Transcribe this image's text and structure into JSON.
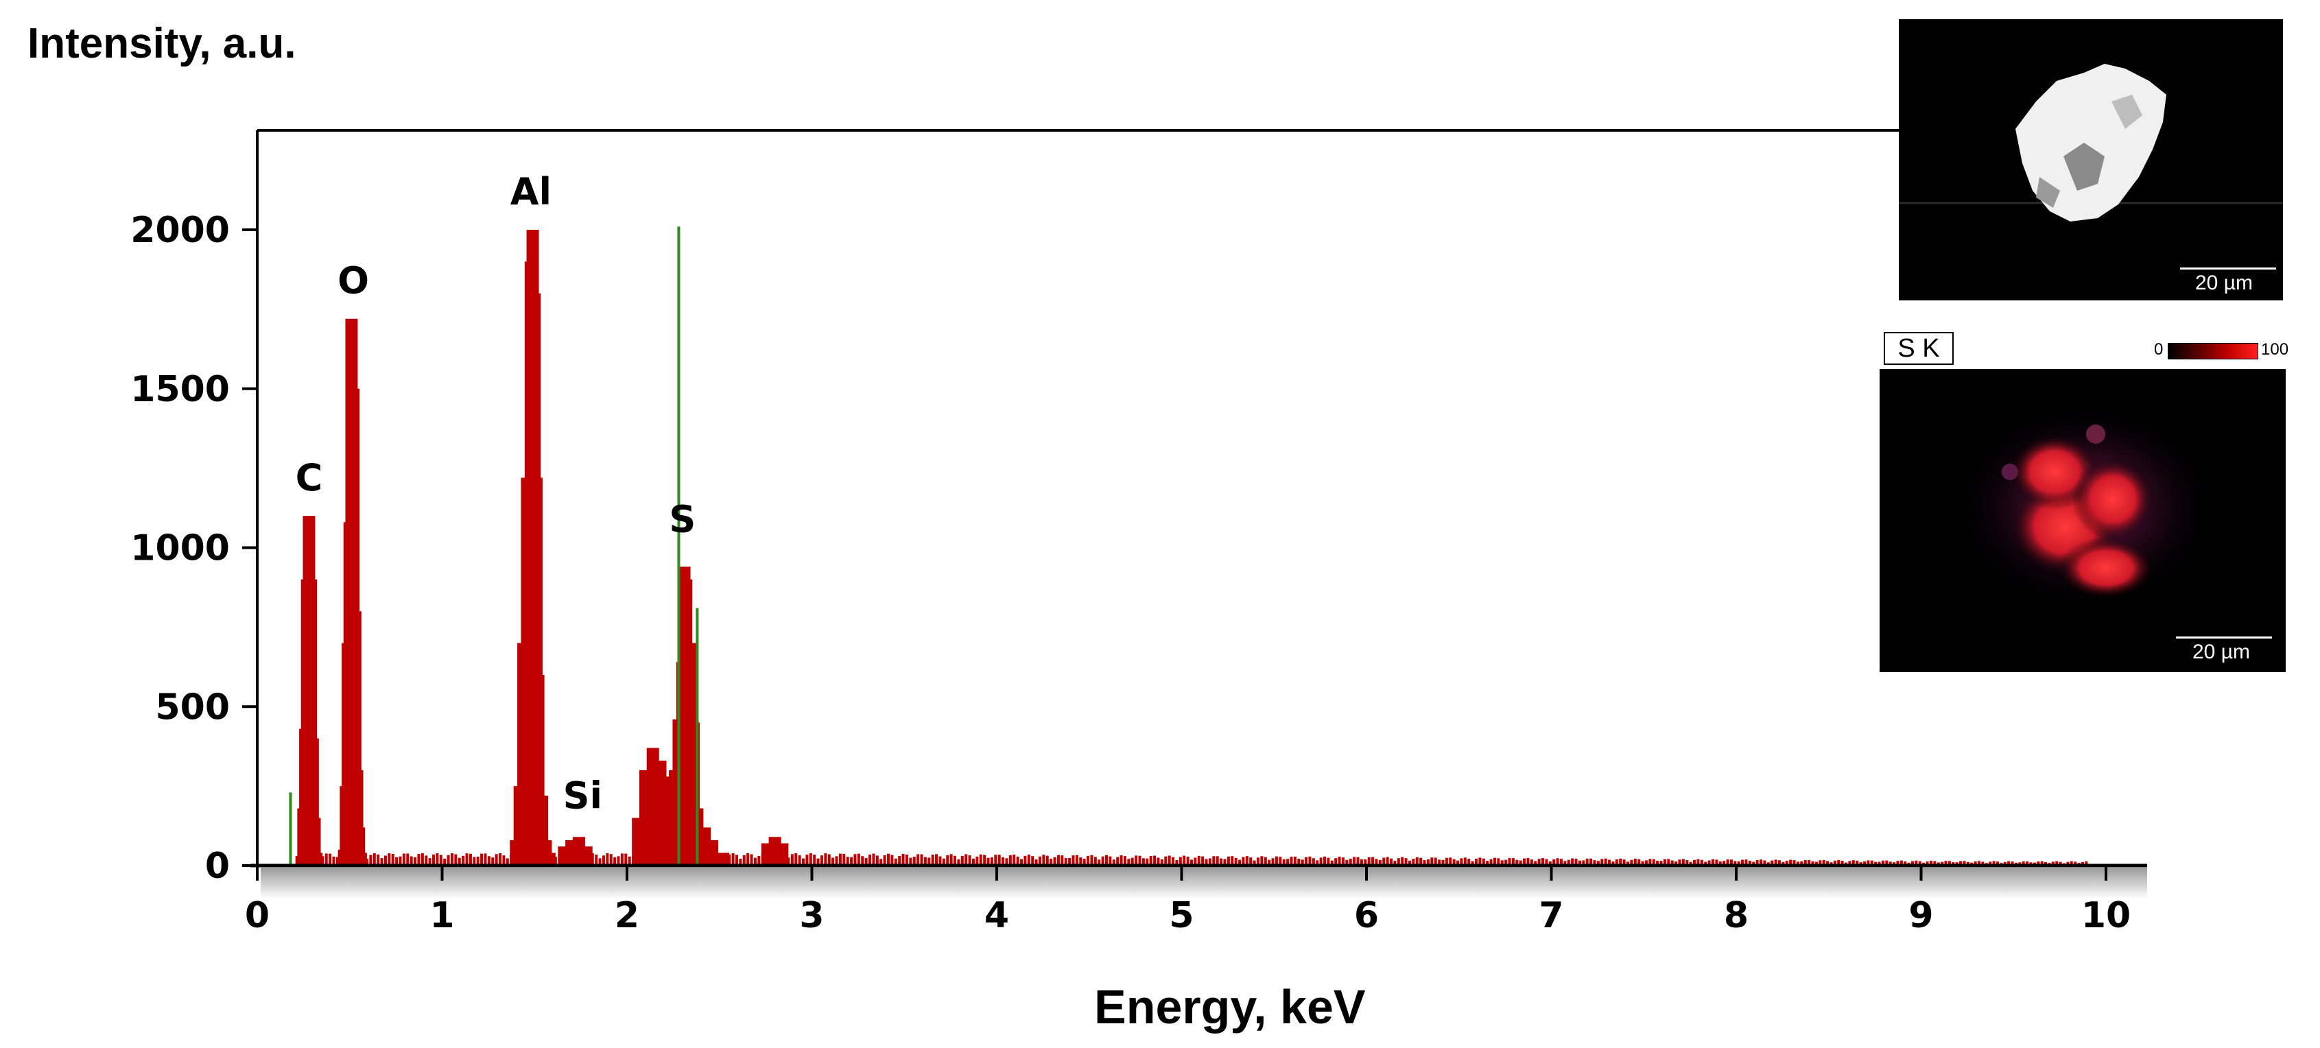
{
  "chart_data": {
    "type": "bar",
    "title": "",
    "xlabel": "Energy, keV",
    "ylabel": "Intensity, a.u.",
    "xlim": [
      0,
      10.2
    ],
    "ylim": [
      0,
      2300
    ],
    "x_ticks": [
      "0",
      "1",
      "2",
      "3",
      "4",
      "5",
      "6",
      "7",
      "8",
      "9",
      "10"
    ],
    "y_ticks": [
      "0",
      "500",
      "1000",
      "1500",
      "2000"
    ],
    "series": [
      {
        "values_description_free": true,
        "x": [
          0.24,
          0.25,
          0.26,
          0.27,
          0.28,
          0.29,
          0.3,
          0.31,
          0.32,
          0.47,
          0.48,
          0.49,
          0.5,
          0.51,
          0.52,
          0.53,
          0.54,
          0.55,
          0.56,
          1.4,
          1.42,
          1.44,
          1.46,
          1.48,
          1.49,
          1.5,
          1.51,
          1.52,
          1.54,
          1.56,
          1.58,
          1.66,
          1.7,
          1.74,
          1.78,
          2.06,
          2.1,
          2.14,
          2.18,
          2.22,
          2.26,
          2.28,
          2.3,
          2.31,
          2.32,
          2.34,
          2.36,
          2.38,
          2.42,
          2.46,
          2.52,
          2.76,
          2.8,
          2.84
        ],
        "y": [
          30,
          180,
          430,
          900,
          1100,
          900,
          400,
          150,
          40,
          50,
          250,
          700,
          1080,
          1720,
          1500,
          800,
          300,
          120,
          40,
          80,
          250,
          700,
          1220,
          1900,
          2000,
          1800,
          1220,
          600,
          220,
          80,
          40,
          60,
          80,
          90,
          60,
          150,
          300,
          370,
          330,
          280,
          300,
          460,
          640,
          940,
          900,
          700,
          450,
          180,
          120,
          80,
          40,
          70,
          90,
          70
        ]
      }
    ],
    "baseline_noise_level": 30,
    "peak_labels": [
      {
        "text": "C",
        "x": 0.28,
        "y": 1180
      },
      {
        "text": "O",
        "x": 0.52,
        "y": 1800
      },
      {
        "text": "Al",
        "x": 1.48,
        "y": 2080
      },
      {
        "text": "Si",
        "x": 1.76,
        "y": 180
      },
      {
        "text": "S",
        "x": 2.3,
        "y": 1050
      }
    ],
    "marker_lines": [
      {
        "x": 0.18,
        "y": 230
      },
      {
        "x": 2.28,
        "y": 2010
      },
      {
        "x": 2.38,
        "y": 810
      }
    ],
    "colors": {
      "bars": "#c00000",
      "markers": "#2e8b20",
      "axes": "#000000"
    }
  },
  "insets": {
    "sem": {
      "scale_text": "20 µm"
    },
    "map": {
      "label": "S K",
      "colorbar_min": "0",
      "colorbar_max": "100",
      "scale_text": "20 µm"
    }
  }
}
